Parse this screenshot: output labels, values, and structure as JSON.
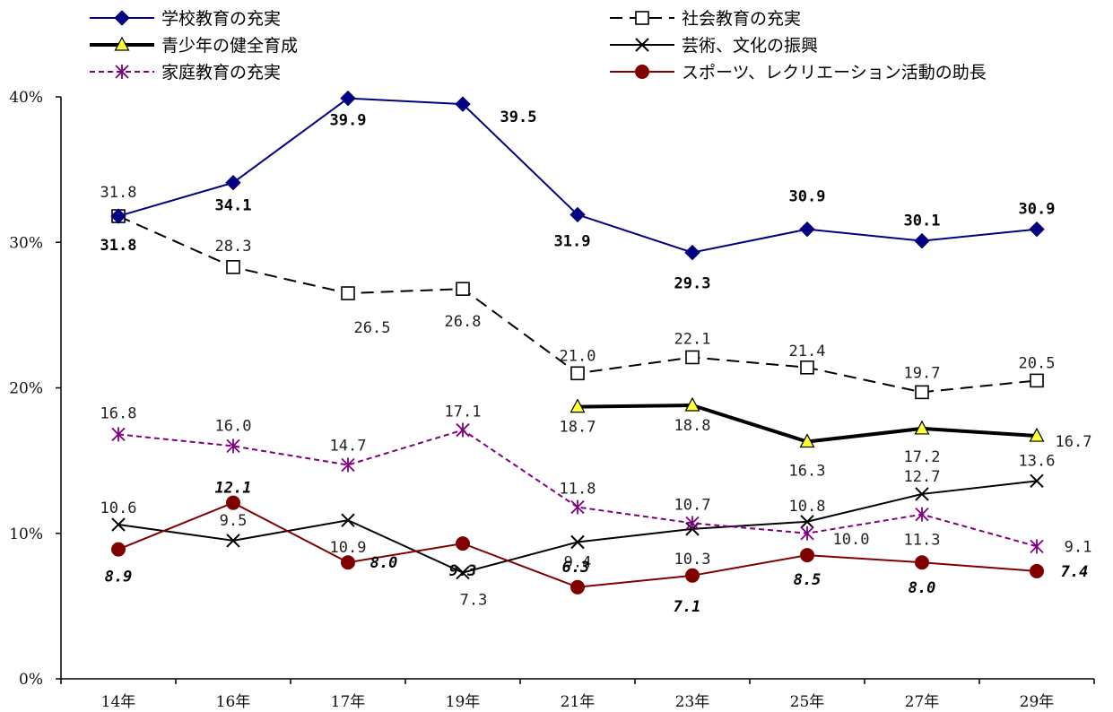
{
  "chart_data": {
    "type": "line",
    "categories": [
      "14年",
      "16年",
      "17年",
      "19年",
      "21年",
      "23年",
      "25年",
      "27年",
      "29年"
    ],
    "ylim": [
      0,
      40
    ],
    "yticks": [
      "0%",
      "10%",
      "20%",
      "30%",
      "40%"
    ],
    "grid": false,
    "legend_position": "top",
    "series": [
      {
        "name": "学校教育の充実",
        "values": [
          31.8,
          34.1,
          39.9,
          39.5,
          31.9,
          29.3,
          30.9,
          30.1,
          30.9
        ],
        "labels": [
          "31.8",
          "34.1",
          "39.9",
          "39.5",
          "31.9",
          "29.3",
          "30.9",
          "30.1",
          "30.9"
        ],
        "color": "#000080",
        "marker": "diamond"
      },
      {
        "name": "社会教育の充実",
        "values": [
          31.8,
          28.3,
          26.5,
          26.8,
          21.0,
          22.1,
          21.4,
          19.7,
          20.5
        ],
        "labels": [
          "31.8",
          "28.3",
          "26.5",
          "26.8",
          "21.0",
          "22.1",
          "21.4",
          "19.7",
          "20.5"
        ],
        "color": "#000000",
        "marker": "square-open",
        "dash": "14,8"
      },
      {
        "name": "青少年の健全育成",
        "values": [
          null,
          null,
          null,
          null,
          18.7,
          18.8,
          16.3,
          17.2,
          16.7
        ],
        "labels": [
          "",
          "",
          "",
          "",
          "18.7",
          "18.8",
          "16.3",
          "17.2",
          "16.7"
        ],
        "color": "#000000",
        "marker": "triangle-yellow",
        "width": 4
      },
      {
        "name": "芸術、文化の振興",
        "values": [
          10.6,
          9.5,
          10.9,
          7.3,
          9.4,
          10.3,
          10.8,
          12.7,
          13.6
        ],
        "labels": [
          "10.6",
          "9.5",
          "10.9",
          "7.3",
          "9.4",
          "10.3",
          "10.8",
          "12.7",
          "13.6"
        ],
        "color": "#000000",
        "marker": "x"
      },
      {
        "name": "家庭教育の充実",
        "values": [
          16.8,
          16.0,
          14.7,
          17.1,
          11.8,
          10.7,
          10.0,
          11.3,
          9.1
        ],
        "labels": [
          "16.8",
          "16.0",
          "14.7",
          "17.1",
          "11.8",
          "10.7",
          "10.0",
          "11.3",
          "9.1"
        ],
        "color": "#800080",
        "marker": "asterisk",
        "dash": "6,4"
      },
      {
        "name": "スポーツ、レクリエーション活動の助長",
        "values": [
          8.9,
          12.1,
          8.0,
          9.3,
          6.3,
          7.1,
          8.5,
          8.0,
          7.4
        ],
        "labels": [
          "8.9",
          "12.1",
          "8.0",
          "9.3",
          "6.3",
          "7.1",
          "8.5",
          "8.0",
          "7.4"
        ],
        "color": "#800000",
        "marker": "circle"
      }
    ]
  }
}
